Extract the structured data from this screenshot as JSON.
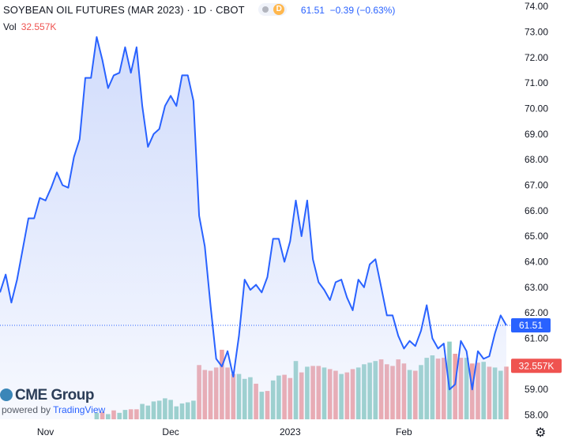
{
  "header": {
    "title": "SOYBEAN OIL FUTURES (MAR 2023) · 1D · CBOT",
    "badge_letter": "D",
    "last_price": "61.51",
    "change": "−0.39 (−0.63%)",
    "volume_label": "Vol",
    "volume_value": "32.557K"
  },
  "branding": {
    "logo_text": "CME Group",
    "powered_by": "powered by",
    "tradingview": "TradingView"
  },
  "icons": {
    "settings": "gear-icon"
  },
  "colors": {
    "line": "#2962ff",
    "area_fill": "#c9d6fb",
    "volume_up": "#94cfc6",
    "volume_down": "#eea3a6",
    "price_label_bg": "#2962ff",
    "volume_label_bg": "#ef5350"
  },
  "chart_data": {
    "type": "line",
    "price_axis": {
      "ticks": [
        "74.00",
        "73.00",
        "72.00",
        "71.00",
        "70.00",
        "69.00",
        "68.00",
        "67.00",
        "66.00",
        "65.00",
        "64.00",
        "63.00",
        "62.00",
        "61.00",
        "60.00",
        "59.00",
        "58.00"
      ],
      "range": [
        57.8,
        74.25
      ]
    },
    "time_axis": {
      "ticks": [
        "Nov",
        "Dec",
        "2023",
        "Feb"
      ],
      "tick_index": [
        8,
        30,
        51,
        71
      ]
    },
    "last_price_label": "61.51",
    "last_volume_label": "32.557K",
    "series": [
      {
        "values": [
          62.8,
          63.5,
          62.4,
          63.3,
          64.5,
          65.7,
          65.7,
          66.5,
          66.4,
          66.9,
          67.5,
          67.0,
          66.9,
          68.1,
          68.8,
          71.2,
          71.2,
          72.8,
          71.9,
          70.8,
          71.3,
          71.4,
          72.4,
          71.4,
          72.4,
          70.1,
          68.5,
          69.0,
          69.2,
          70.1,
          70.5,
          70.1,
          71.3,
          71.3,
          70.3,
          65.8,
          64.6,
          62.3,
          60.2,
          59.9,
          60.5,
          59.5,
          61.1,
          63.3,
          62.9,
          63.1,
          62.8,
          63.4,
          64.9,
          64.9,
          64.0,
          64.8,
          66.4,
          65.0,
          66.4,
          64.1,
          63.2,
          62.9,
          62.5,
          63.2,
          63.3,
          62.6,
          62.1,
          63.3,
          63.0,
          63.9,
          64.1,
          63.0,
          61.9,
          61.9,
          61.1,
          60.6,
          60.9,
          60.7,
          61.3,
          62.3,
          61.0,
          60.6,
          60.8,
          59.0,
          59.2,
          60.9,
          60.5,
          59.0,
          60.5,
          60.2,
          60.3,
          61.2,
          61.9,
          61.51
        ],
        "volume": [
          null,
          null,
          null,
          null,
          null,
          null,
          null,
          null,
          null,
          null,
          null,
          null,
          null,
          null,
          null,
          null,
          null,
          4.0,
          4.5,
          3.2,
          5.5,
          4.0,
          5.8,
          6.2,
          6.2,
          9.5,
          8.5,
          11.0,
          11.5,
          13.0,
          12.0,
          8.0,
          9.8,
          10.5,
          11.5,
          33.5,
          30.5,
          30.0,
          32.0,
          43.0,
          32.0,
          28.0,
          28.0,
          25.0,
          26.0,
          22.0,
          17.0,
          17.5,
          24.0,
          27.0,
          27.5,
          25.5,
          36.0,
          29.0,
          32.5,
          33.0,
          33.0,
          32.0,
          31.0,
          30.0,
          28.0,
          29.0,
          31.0,
          32.0,
          34.0,
          35.0,
          36.0,
          37.0,
          34.0,
          33.0,
          37.0,
          34.5,
          30.5,
          30.0,
          33.5,
          38.0,
          39.5,
          37.5,
          38.0,
          48.0,
          40.5,
          38.0,
          38.0,
          34.5,
          35.0,
          35.5,
          32.5,
          32.0,
          30.0,
          32.557
        ],
        "volume_up": [
          false,
          false,
          false,
          false,
          false,
          false,
          false,
          false,
          false,
          false,
          false,
          false,
          false,
          false,
          false,
          false,
          false,
          true,
          false,
          true,
          false,
          true,
          true,
          false,
          false,
          true,
          true,
          true,
          true,
          true,
          true,
          true,
          true,
          true,
          true,
          false,
          false,
          false,
          false,
          false,
          false,
          false,
          true,
          true,
          true,
          false,
          true,
          false,
          true,
          true,
          false,
          false,
          true,
          false,
          true,
          false,
          false,
          true,
          false,
          false,
          true,
          false,
          false,
          true,
          true,
          true,
          true,
          false,
          false,
          false,
          false,
          false,
          true,
          false,
          true,
          true,
          true,
          false,
          false,
          true,
          false,
          false,
          true,
          false,
          false,
          true,
          false,
          true,
          true,
          false
        ],
        "volume_unit": "K"
      }
    ],
    "grid": false,
    "legend": "none"
  }
}
